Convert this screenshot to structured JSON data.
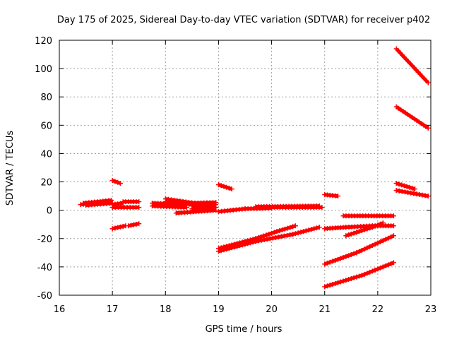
{
  "chart_data": {
    "type": "scatter",
    "title": "Day 175 of 2025, Sidereal Day-to-day VTEC variation (SDTVAR) for receiver p402",
    "xlabel": "GPS time / hours",
    "ylabel": "SDTVAR / TECUs",
    "xlim": [
      16,
      23
    ],
    "ylim": [
      -60,
      120
    ],
    "xticks": [
      16,
      17,
      18,
      19,
      20,
      21,
      22,
      23
    ],
    "yticks": [
      -60,
      -40,
      -20,
      0,
      20,
      40,
      60,
      80,
      100,
      120
    ],
    "grid": true,
    "marker_color": "#ff0000",
    "series": [
      {
        "name": "arc-1",
        "points": [
          [
            16.4,
            4
          ],
          [
            16.95,
            6
          ]
        ]
      },
      {
        "name": "arc-2",
        "points": [
          [
            16.45,
            5
          ],
          [
            16.98,
            7
          ]
        ]
      },
      {
        "name": "arc-3",
        "points": [
          [
            16.5,
            3.5
          ],
          [
            17.0,
            5
          ]
        ]
      },
      {
        "name": "arc-4",
        "points": [
          [
            17.0,
            2
          ],
          [
            17.5,
            2
          ]
        ]
      },
      {
        "name": "arc-5",
        "points": [
          [
            17.2,
            6
          ],
          [
            17.5,
            6
          ]
        ]
      },
      {
        "name": "arc-6",
        "points": [
          [
            17.0,
            4
          ],
          [
            17.2,
            5
          ]
        ]
      },
      {
        "name": "arc-7",
        "points": [
          [
            17.0,
            21
          ],
          [
            17.15,
            19
          ]
        ]
      },
      {
        "name": "arc-8",
        "points": [
          [
            17.0,
            -13
          ],
          [
            17.25,
            -11
          ]
        ]
      },
      {
        "name": "arc-9",
        "points": [
          [
            17.3,
            -11
          ],
          [
            17.5,
            -9.5
          ]
        ]
      },
      {
        "name": "arc-10",
        "points": [
          [
            17.75,
            3
          ],
          [
            18.4,
            2
          ]
        ]
      },
      {
        "name": "arc-11",
        "points": [
          [
            17.75,
            5
          ],
          [
            18.4,
            4
          ]
        ]
      },
      {
        "name": "arc-12",
        "points": [
          [
            18.0,
            8
          ],
          [
            18.55,
            5
          ]
        ]
      },
      {
        "name": "arc-13",
        "points": [
          [
            18.0,
            6
          ],
          [
            18.5,
            4
          ]
        ]
      },
      {
        "name": "arc-14",
        "points": [
          [
            18.2,
            -2
          ],
          [
            18.95,
            0
          ]
        ]
      },
      {
        "name": "arc-15",
        "points": [
          [
            18.5,
            1
          ],
          [
            18.95,
            2
          ]
        ]
      },
      {
        "name": "arc-16",
        "points": [
          [
            18.5,
            3
          ],
          [
            18.95,
            4
          ]
        ]
      },
      {
        "name": "arc-17",
        "points": [
          [
            18.5,
            5
          ],
          [
            18.95,
            5.5
          ]
        ]
      },
      {
        "name": "arc-18",
        "points": [
          [
            19.0,
            18
          ],
          [
            19.25,
            15
          ]
        ]
      },
      {
        "name": "arc-19",
        "points": [
          [
            19.0,
            -1
          ],
          [
            19.5,
            1
          ]
        ]
      },
      {
        "name": "arc-20",
        "points": [
          [
            19.5,
            1
          ],
          [
            20.0,
            1.5
          ]
        ]
      },
      {
        "name": "arc-21",
        "points": [
          [
            19.7,
            2.5
          ],
          [
            20.9,
            3
          ]
        ]
      },
      {
        "name": "arc-22",
        "points": [
          [
            20.0,
            2
          ],
          [
            20.95,
            2
          ]
        ]
      },
      {
        "name": "arc-23",
        "points": [
          [
            19.0,
            -27
          ],
          [
            19.7,
            -20
          ],
          [
            20.1,
            -15
          ],
          [
            20.45,
            -11
          ]
        ]
      },
      {
        "name": "arc-24",
        "points": [
          [
            19.0,
            -29
          ],
          [
            19.7,
            -22
          ],
          [
            20.4,
            -17
          ],
          [
            20.9,
            -12
          ]
        ]
      },
      {
        "name": "arc-25",
        "points": [
          [
            21.0,
            11
          ],
          [
            21.25,
            10
          ]
        ]
      },
      {
        "name": "arc-26",
        "points": [
          [
            21.0,
            -13
          ],
          [
            21.4,
            -12
          ],
          [
            21.9,
            -11
          ],
          [
            22.3,
            -11
          ]
        ]
      },
      {
        "name": "arc-27",
        "points": [
          [
            21.35,
            -4
          ],
          [
            22.3,
            -4
          ]
        ]
      },
      {
        "name": "arc-28",
        "points": [
          [
            21.4,
            -18
          ],
          [
            21.9,
            -12
          ],
          [
            22.1,
            -9
          ]
        ]
      },
      {
        "name": "arc-29",
        "points": [
          [
            21.0,
            -38
          ],
          [
            21.6,
            -30
          ],
          [
            22.3,
            -18
          ]
        ]
      },
      {
        "name": "arc-30",
        "points": [
          [
            21.0,
            -54
          ],
          [
            21.7,
            -46
          ],
          [
            22.3,
            -37
          ]
        ]
      },
      {
        "name": "arc-31",
        "points": [
          [
            22.35,
            114
          ],
          [
            22.95,
            90
          ]
        ]
      },
      {
        "name": "arc-32",
        "points": [
          [
            22.35,
            73
          ],
          [
            22.95,
            58
          ]
        ]
      },
      {
        "name": "arc-33",
        "points": [
          [
            22.35,
            19
          ],
          [
            22.7,
            15
          ]
        ]
      },
      {
        "name": "arc-34",
        "points": [
          [
            22.35,
            14
          ],
          [
            22.95,
            10
          ]
        ]
      }
    ]
  }
}
